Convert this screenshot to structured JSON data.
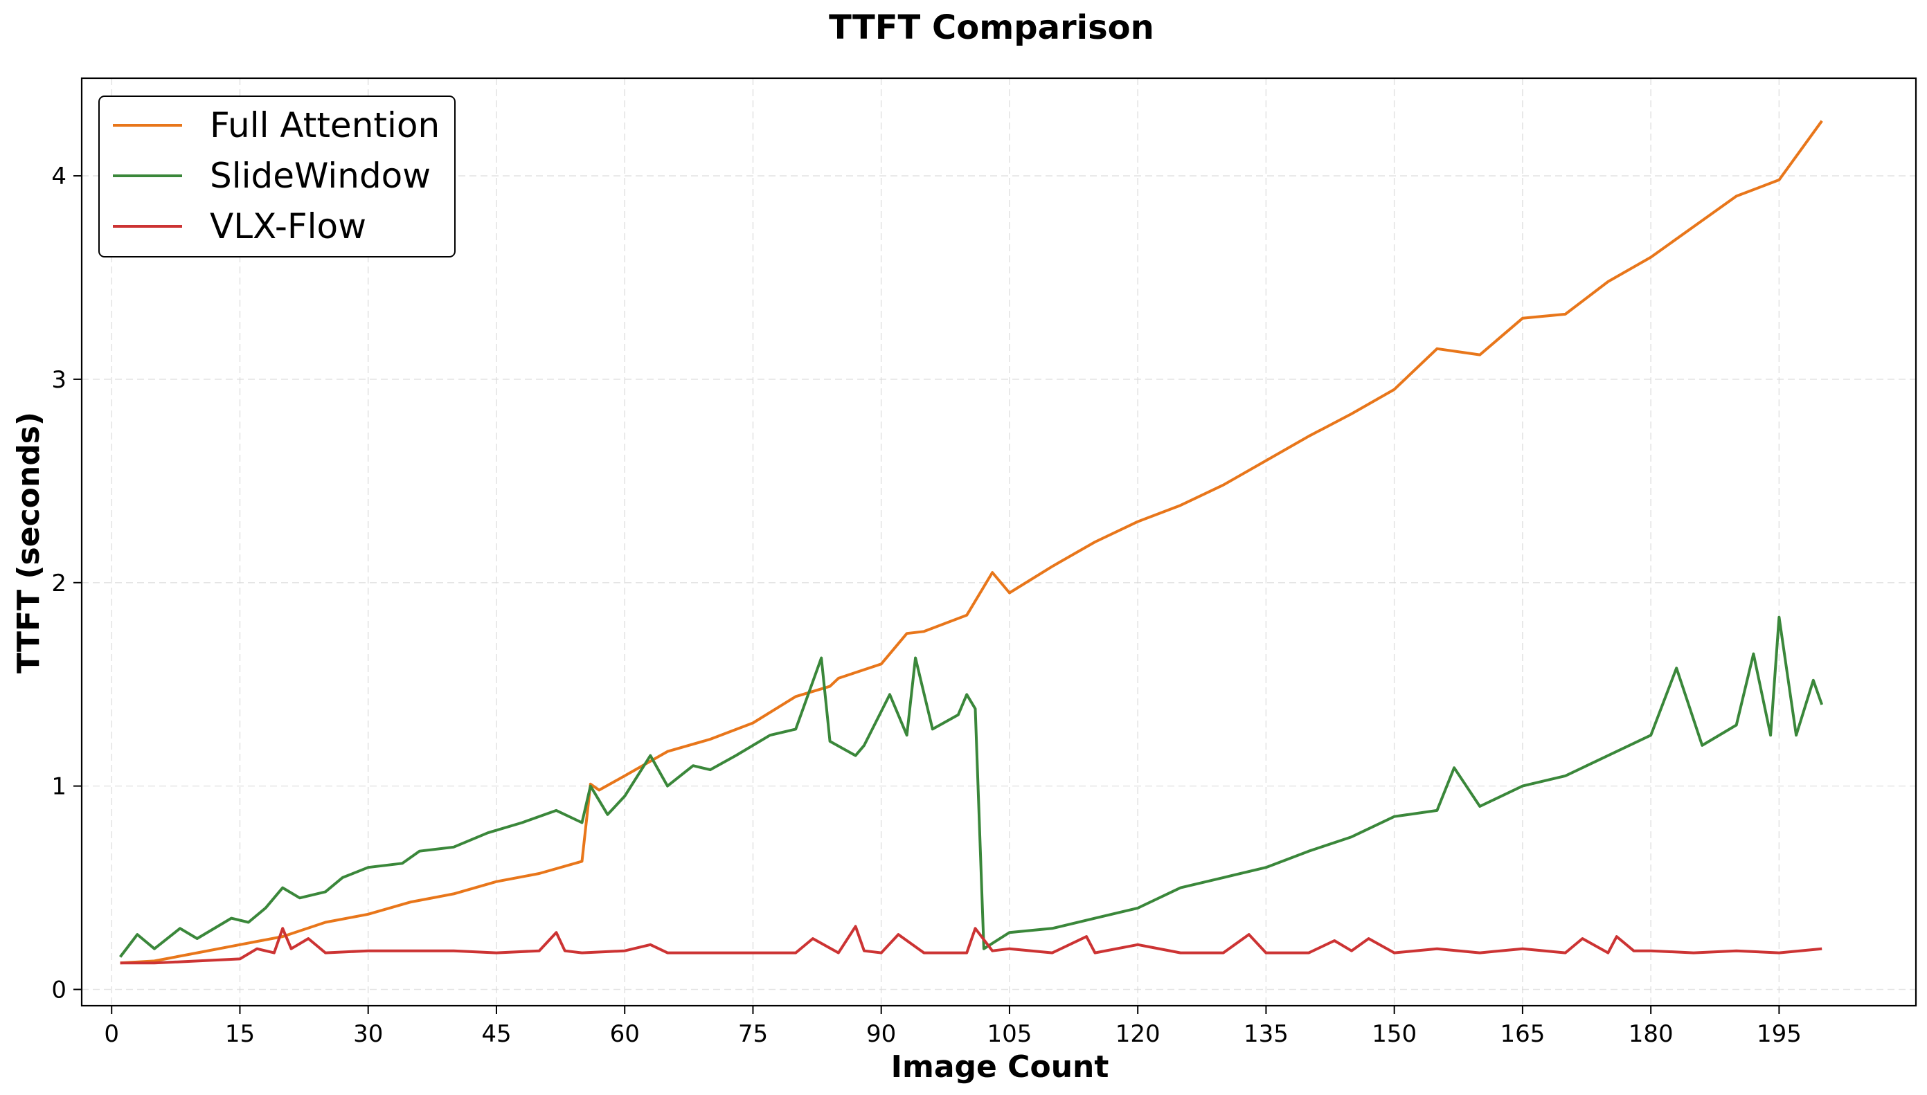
{
  "chart_data": {
    "type": "line",
    "title": "TTFT Comparison",
    "xlabel": "Image Count",
    "ylabel": "TTFT (seconds)",
    "xlim": [
      -3.5,
      211
    ],
    "ylim": [
      -0.08,
      4.48
    ],
    "xticks": [
      0,
      15,
      30,
      45,
      60,
      75,
      90,
      105,
      120,
      135,
      150,
      165,
      180,
      195
    ],
    "yticks": [
      0,
      1,
      2,
      3,
      4
    ],
    "grid": true,
    "legend_position": "top-left",
    "series": [
      {
        "name": "Full Attention",
        "color": "#e8761a",
        "x": [
          1,
          5,
          10,
          15,
          20,
          25,
          30,
          35,
          40,
          45,
          50,
          55,
          56,
          57,
          60,
          65,
          70,
          75,
          80,
          84,
          85,
          90,
          93,
          95,
          100,
          103,
          105,
          110,
          115,
          120,
          125,
          130,
          135,
          140,
          145,
          150,
          155,
          160,
          165,
          170,
          175,
          180,
          185,
          190,
          195,
          200
        ],
        "y": [
          0.13,
          0.14,
          0.18,
          0.22,
          0.26,
          0.33,
          0.37,
          0.43,
          0.47,
          0.53,
          0.57,
          0.63,
          1.01,
          0.98,
          1.05,
          1.17,
          1.23,
          1.31,
          1.44,
          1.49,
          1.53,
          1.6,
          1.75,
          1.76,
          1.84,
          2.05,
          1.95,
          2.08,
          2.2,
          2.3,
          2.38,
          2.48,
          2.6,
          2.72,
          2.83,
          2.95,
          3.15,
          3.12,
          3.3,
          3.32,
          3.48,
          3.6,
          3.75,
          3.9,
          3.98,
          4.27
        ]
      },
      {
        "name": "SlideWindow",
        "color": "#3a873a",
        "x": [
          1,
          3,
          5,
          8,
          10,
          14,
          16,
          18,
          20,
          22,
          25,
          27,
          30,
          34,
          36,
          40,
          44,
          48,
          52,
          55,
          56,
          58,
          60,
          63,
          65,
          68,
          70,
          73,
          77,
          80,
          83,
          84,
          87,
          88,
          91,
          93,
          94,
          96,
          99,
          100,
          101,
          102,
          105,
          110,
          115,
          120,
          125,
          130,
          135,
          140,
          145,
          150,
          155,
          157,
          160,
          165,
          170,
          175,
          180,
          183,
          186,
          190,
          192,
          194,
          195,
          197,
          199,
          200
        ],
        "y": [
          0.16,
          0.27,
          0.2,
          0.3,
          0.25,
          0.35,
          0.33,
          0.4,
          0.5,
          0.45,
          0.48,
          0.55,
          0.6,
          0.62,
          0.68,
          0.7,
          0.77,
          0.82,
          0.88,
          0.82,
          1.0,
          0.86,
          0.95,
          1.15,
          1.0,
          1.1,
          1.08,
          1.15,
          1.25,
          1.28,
          1.63,
          1.22,
          1.15,
          1.2,
          1.45,
          1.25,
          1.63,
          1.28,
          1.35,
          1.45,
          1.38,
          0.2,
          0.28,
          0.3,
          0.35,
          0.4,
          0.5,
          0.55,
          0.6,
          0.68,
          0.75,
          0.85,
          0.88,
          1.09,
          0.9,
          1.0,
          1.05,
          1.15,
          1.25,
          1.58,
          1.2,
          1.3,
          1.65,
          1.25,
          1.83,
          1.25,
          1.52,
          1.4
        ]
      },
      {
        "name": "VLX-Flow",
        "color": "#cc3333",
        "x": [
          1,
          5,
          10,
          15,
          17,
          19,
          20,
          21,
          23,
          25,
          30,
          35,
          40,
          45,
          50,
          52,
          53,
          55,
          60,
          63,
          65,
          70,
          75,
          80,
          82,
          85,
          87,
          88,
          90,
          92,
          95,
          100,
          101,
          103,
          105,
          110,
          114,
          115,
          120,
          125,
          130,
          133,
          135,
          140,
          143,
          145,
          147,
          150,
          155,
          160,
          165,
          170,
          172,
          175,
          176,
          178,
          180,
          185,
          190,
          195,
          200
        ],
        "y": [
          0.13,
          0.13,
          0.14,
          0.15,
          0.2,
          0.18,
          0.3,
          0.2,
          0.25,
          0.18,
          0.19,
          0.19,
          0.19,
          0.18,
          0.19,
          0.28,
          0.19,
          0.18,
          0.19,
          0.22,
          0.18,
          0.18,
          0.18,
          0.18,
          0.25,
          0.18,
          0.31,
          0.19,
          0.18,
          0.27,
          0.18,
          0.18,
          0.3,
          0.19,
          0.2,
          0.18,
          0.26,
          0.18,
          0.22,
          0.18,
          0.18,
          0.27,
          0.18,
          0.18,
          0.24,
          0.19,
          0.25,
          0.18,
          0.2,
          0.18,
          0.2,
          0.18,
          0.25,
          0.18,
          0.26,
          0.19,
          0.19,
          0.18,
          0.19,
          0.18,
          0.2
        ]
      }
    ]
  }
}
